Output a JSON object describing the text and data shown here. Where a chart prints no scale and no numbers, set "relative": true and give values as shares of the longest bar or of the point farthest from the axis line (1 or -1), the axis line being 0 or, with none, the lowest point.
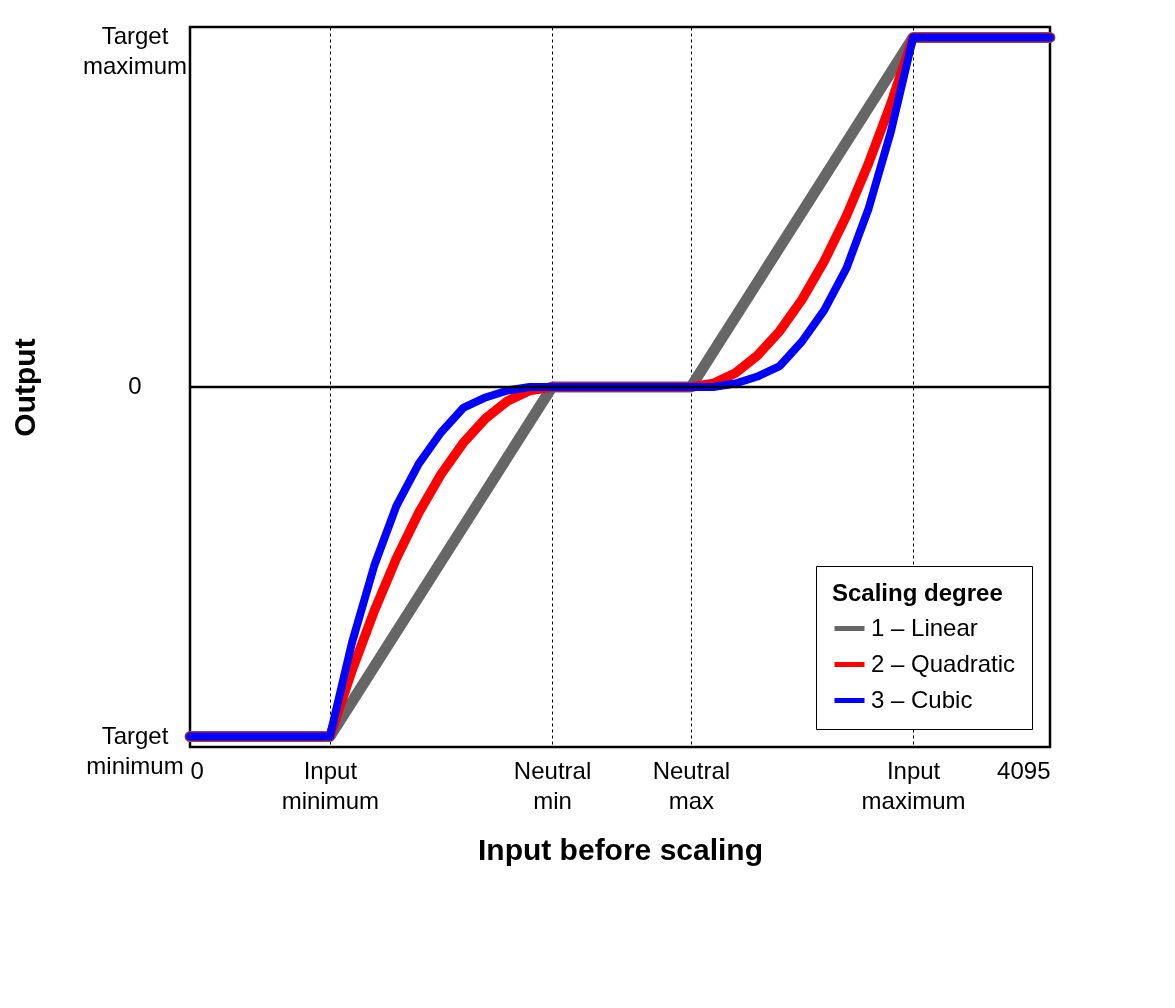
{
  "chart_data": {
    "type": "line",
    "relative": true,
    "xlabel": "Input before scaling",
    "ylabel": "Output",
    "legend_title": "Scaling degree",
    "xlim": [
      0,
      4095
    ],
    "xticks": [
      0,
      {
        "value": 666,
        "label": "Input\nminimum"
      },
      {
        "value": 1724,
        "label": "Neutral\nmin"
      },
      {
        "value": 2385,
        "label": "Neutral\nmax"
      },
      {
        "value": 3443,
        "label": "Input\nmaximum"
      },
      4095
    ],
    "annotations": [
      "Target\nmaximum",
      "0",
      "Target\nminimum"
    ],
    "grid": "x",
    "legend": "bottom right",
    "line_style": "solid",
    "marker": "none",
    "ref_lines": [
      {
        "axis": "y",
        "value": 0,
        "color": "#000000",
        "line_style": "solid"
      }
    ],
    "series": [
      {
        "name": "1 – Linear",
        "color": "#666666",
        "x": [
          0,
          666,
          1724,
          2385,
          3443,
          4095
        ],
        "values": [
          -1,
          -1,
          0,
          0,
          1,
          1
        ]
      },
      {
        "name": "2 – Quadratic",
        "color": "#ff0000",
        "x": [
          0,
          666,
          772,
          878,
          983,
          1089,
          1195,
          1301,
          1407,
          1512,
          1618,
          1724,
          2385,
          2491,
          2597,
          2702,
          2808,
          2914,
          3020,
          3126,
          3231,
          3337,
          3443,
          4095
        ],
        "values": [
          -1,
          -1,
          -0.81,
          -0.64,
          -0.49,
          -0.36,
          -0.25,
          -0.16,
          -0.09,
          -0.04,
          -0.01,
          0,
          0,
          0.01,
          0.04,
          0.09,
          0.16,
          0.25,
          0.36,
          0.49,
          0.64,
          0.81,
          1,
          1
        ]
      },
      {
        "name": "3 – Cubic",
        "color": "#0000ff",
        "x": [
          0,
          666,
          772,
          878,
          983,
          1089,
          1195,
          1301,
          1407,
          1512,
          1618,
          1724,
          2385,
          2491,
          2597,
          2702,
          2808,
          2914,
          3020,
          3126,
          3231,
          3337,
          3443,
          4095
        ],
        "values": [
          -1,
          -1,
          -0.73,
          -0.51,
          -0.34,
          -0.22,
          -0.13,
          -0.06,
          -0.03,
          -0.01,
          0,
          0,
          0,
          0,
          0.01,
          0.03,
          0.06,
          0.13,
          0.22,
          0.34,
          0.51,
          0.73,
          1,
          1
        ]
      }
    ]
  }
}
